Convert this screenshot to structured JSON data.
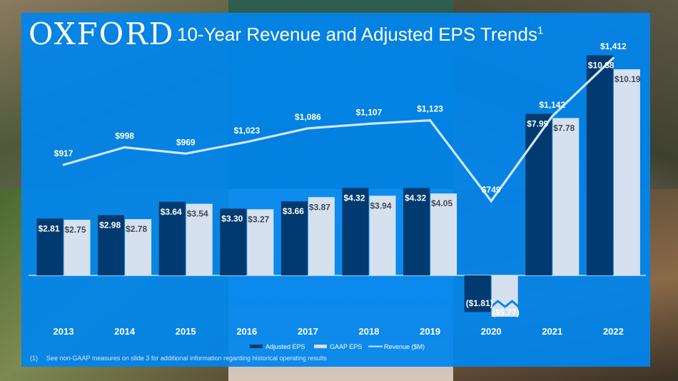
{
  "brand": {
    "logo_text": "OXFORD"
  },
  "header": {
    "title": "10-Year Revenue and Adjusted EPS Trends",
    "title_superscript": "1"
  },
  "footnote": {
    "marker": "(1)",
    "text": "See non-GAAP measures on slide 3 for additional information regarding historical operating results"
  },
  "colors": {
    "panel": "#0085ee",
    "adjusted_eps": "#003a70",
    "gaap_eps": "#d6e1ef",
    "revenue_line": "#cfe6f9"
  },
  "chart_data": {
    "type": "bar",
    "title": "10-Year Revenue and Adjusted EPS Trends",
    "categories": [
      "2013",
      "2014",
      "2015",
      "2016",
      "2017",
      "2018",
      "2019",
      "2020",
      "2021",
      "2022"
    ],
    "series": [
      {
        "name": "Adjusted EPS",
        "type": "bar",
        "values": [
          2.81,
          2.98,
          3.64,
          3.3,
          3.66,
          4.32,
          4.32,
          -1.81,
          7.99,
          10.88
        ],
        "labels": [
          "$2.81",
          "$2.98",
          "$3.64",
          "$3.30",
          "$3.66",
          "$4.32",
          "$4.32",
          "($1.81)",
          "$7.99",
          "$10.88"
        ]
      },
      {
        "name": "GAAP EPS",
        "type": "bar",
        "values": [
          2.75,
          2.78,
          3.54,
          3.27,
          3.87,
          3.94,
          4.05,
          -5.77,
          7.78,
          10.19
        ],
        "labels": [
          "$2.75",
          "$2.78",
          "$3.54",
          "$3.27",
          "$3.87",
          "$3.94",
          "$4.05",
          "($5.77)",
          "$7.78",
          "$10.19"
        ]
      },
      {
        "name": "Revenue ($M)",
        "type": "line",
        "values": [
          917,
          998,
          969,
          1023,
          1086,
          1107,
          1123,
          749,
          1142,
          1412
        ],
        "labels": [
          "$917",
          "$998",
          "$969",
          "$1,023",
          "$1,086",
          "$1,107",
          "$1,123",
          "$749",
          "$1,142",
          "$1,412"
        ]
      }
    ],
    "gaap_2020_axis_break": true,
    "legend_position": "bottom",
    "grid": false
  }
}
